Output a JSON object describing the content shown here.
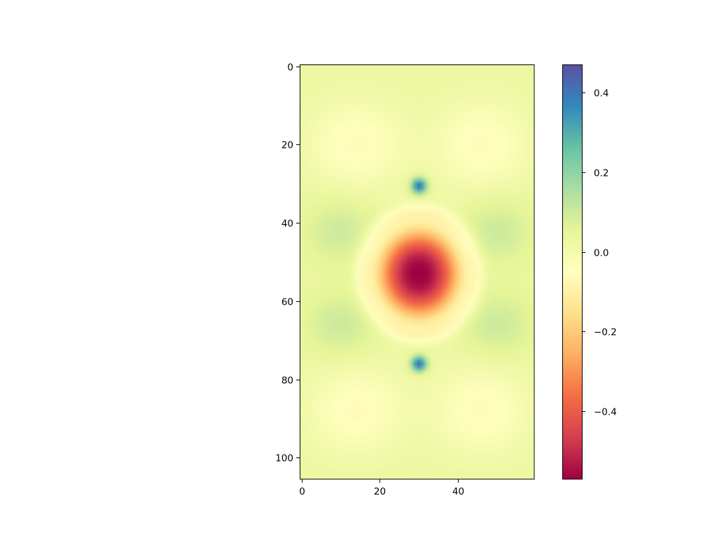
{
  "chart_data": {
    "type": "heatmap",
    "title": "",
    "xlabel": "",
    "ylabel": "",
    "shape": {
      "rows": 106,
      "cols": 60
    },
    "xlim": [
      -0.5,
      59.5
    ],
    "ylim": [
      105.5,
      -0.5
    ],
    "y_axis_inverted": true,
    "grid": false,
    "colormap": "Spectral",
    "x_ticks": [
      {
        "value": 0,
        "label": "0"
      },
      {
        "value": 20,
        "label": "20"
      },
      {
        "value": 40,
        "label": "40"
      }
    ],
    "y_ticks": [
      {
        "value": 0,
        "label": "0"
      },
      {
        "value": 20,
        "label": "20"
      },
      {
        "value": 40,
        "label": "40"
      },
      {
        "value": 60,
        "label": "60"
      },
      {
        "value": 80,
        "label": "80"
      },
      {
        "value": 100,
        "label": "100"
      }
    ],
    "colorbar": {
      "range": [
        -0.57,
        0.47
      ],
      "ticks": [
        {
          "value": 0.4,
          "label": "0.4"
        },
        {
          "value": 0.2,
          "label": "0.2"
        },
        {
          "value": 0.0,
          "label": "0.0"
        },
        {
          "value": -0.2,
          "label": "−0.2"
        },
        {
          "value": -0.4,
          "label": "−0.4"
        }
      ]
    },
    "features": [
      {
        "name": "central minimum",
        "x": 30,
        "y": 53,
        "value": -0.57
      },
      {
        "name": "upper peak",
        "x": 30,
        "y": 30.5,
        "value": 0.42
      },
      {
        "name": "lower peak",
        "x": 30,
        "y": 76,
        "value": 0.42
      },
      {
        "name": "upper-left lobe",
        "x": 10,
        "y": 42,
        "value": 0.1
      },
      {
        "name": "upper-right lobe",
        "x": 50,
        "y": 42,
        "value": 0.1
      },
      {
        "name": "lower-left lobe",
        "x": 10,
        "y": 66,
        "value": 0.1
      },
      {
        "name": "lower-right lobe",
        "x": 50,
        "y": 66,
        "value": 0.1
      },
      {
        "name": "upper-left pale region",
        "x": 14,
        "y": 20,
        "value": -0.06
      },
      {
        "name": "upper-right pale region",
        "x": 46,
        "y": 20,
        "value": -0.06
      },
      {
        "name": "lower-left pale region",
        "x": 14,
        "y": 88,
        "value": -0.06
      },
      {
        "name": "lower-right pale region",
        "x": 46,
        "y": 88,
        "value": -0.06
      }
    ],
    "background_value": 0.03
  }
}
